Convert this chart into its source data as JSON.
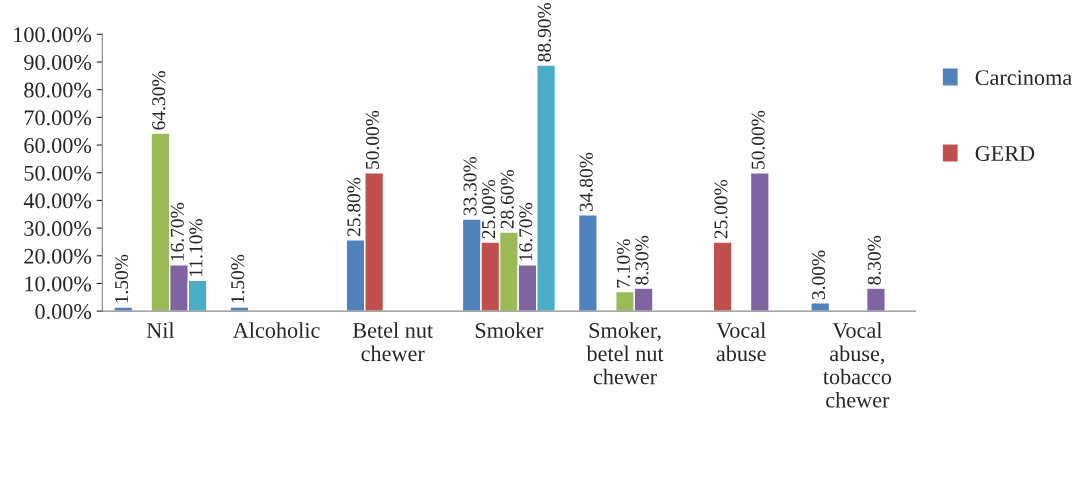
{
  "chart_data": {
    "type": "bar",
    "categories": [
      "Nil",
      "Alcoholic",
      "Betel nut\nchewer",
      "Smoker",
      "Smoker,\nbetel nut\nchewer",
      "Vocal\nabuse",
      "Vocal\nabuse,\ntobacco\nchewer"
    ],
    "series": [
      {
        "name": "Carcinoma",
        "color": "#4f81bd",
        "values": [
          1.5,
          1.5,
          25.8,
          33.3,
          34.8,
          null,
          3.0
        ],
        "value_labels": [
          "1.50%",
          "1.50%",
          "25.80%",
          "33.30%",
          "34.80%",
          null,
          "3.00%"
        ]
      },
      {
        "name": "GERD",
        "color": "#c0504d",
        "values": [
          null,
          null,
          50.0,
          25.0,
          null,
          25.0,
          null
        ],
        "value_labels": [
          null,
          null,
          "50.00%",
          "25.00%",
          null,
          "25.00%",
          null
        ]
      },
      {
        "color": "#9bbb59",
        "values": [
          64.3,
          null,
          null,
          28.6,
          7.1,
          null,
          null
        ],
        "value_labels": [
          "64.30%",
          null,
          null,
          "28.60%",
          "7.10%",
          null,
          null
        ]
      },
      {
        "color": "#8064a2",
        "values": [
          16.7,
          null,
          null,
          16.7,
          8.3,
          50.0,
          8.3
        ],
        "value_labels": [
          "16.70%",
          null,
          null,
          "16.70%",
          "8.30%",
          "50.00%",
          "8.30%"
        ]
      },
      {
        "color": "#4bacc6",
        "values": [
          11.1,
          null,
          null,
          88.9,
          null,
          null,
          null
        ],
        "value_labels": [
          "11.10%",
          null,
          null,
          "88.90%",
          null,
          null,
          null
        ]
      }
    ],
    "ylim": [
      0,
      100
    ],
    "yticks": [
      {
        "value": 0,
        "label": "0.00%"
      },
      {
        "value": 10,
        "label": "10.00%"
      },
      {
        "value": 20,
        "label": "20.00%"
      },
      {
        "value": 30,
        "label": "30.00%"
      },
      {
        "value": 40,
        "label": "40.00%"
      },
      {
        "value": 50,
        "label": "50.00%"
      },
      {
        "value": 60,
        "label": "60.00%"
      },
      {
        "value": 70,
        "label": "70.00%"
      },
      {
        "value": 80,
        "label": "80.00%"
      },
      {
        "value": 90,
        "label": "90.00%"
      },
      {
        "value": 100,
        "label": "100.00%"
      }
    ],
    "grid": false,
    "legend": "right"
  }
}
